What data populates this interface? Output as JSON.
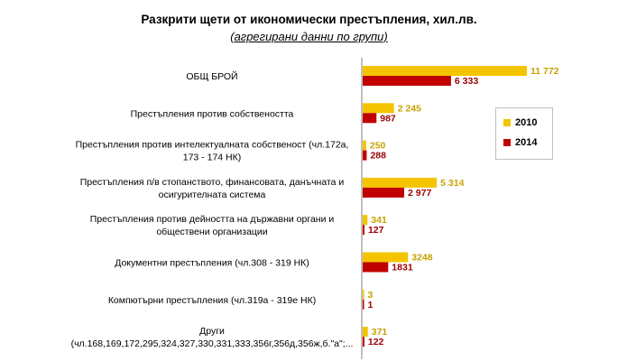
{
  "chart_data": {
    "type": "bar",
    "orientation": "horizontal",
    "title": "Разкрити щети от икономически престъпления, хил.лв.",
    "subtitle": "(агрегирани данни по групи)",
    "categories": [
      [
        "ОБЩ БРОЙ"
      ],
      [
        "Престъпления против собствеността"
      ],
      [
        "Престъпления против интелектуалната собственост (чл.172а,",
        "173 - 174 НК)"
      ],
      [
        "Престъпления п/в стопанството, финансовата, данъчната и",
        "осигурителната система"
      ],
      [
        "Престъпления против дейността на държавни органи и",
        "обществени организации"
      ],
      [
        "Документни престъпления (чл.308 - 319 НК)"
      ],
      [
        "Компютърни престъпления (чл.319а - 319е НК)"
      ],
      [
        "Други",
        "(чл.168,169,172,295,324,327,330,331,333,356г,356д,356ж,б.\"а\";..."
      ]
    ],
    "series": [
      {
        "name": "2010",
        "color": "#f5c400",
        "label_color": "#c9a200",
        "values": [
          11772,
          2245,
          250,
          5314,
          341,
          3248,
          3,
          371
        ],
        "labels": [
          "11 772",
          "2 245",
          "250",
          "5 314",
          "341",
          "3248",
          "3",
          "371"
        ]
      },
      {
        "name": "2014",
        "color": "#c00000",
        "label_color": "#9a0000",
        "values": [
          6333,
          987,
          288,
          2977,
          127,
          1831,
          1,
          122
        ],
        "labels": [
          "6 333",
          "987",
          "288",
          "2 977",
          "127",
          "1831",
          "1",
          "122"
        ]
      }
    ],
    "xlim": [
      0,
      12000
    ],
    "grid": false,
    "axis_line": "left",
    "legend": "right"
  }
}
